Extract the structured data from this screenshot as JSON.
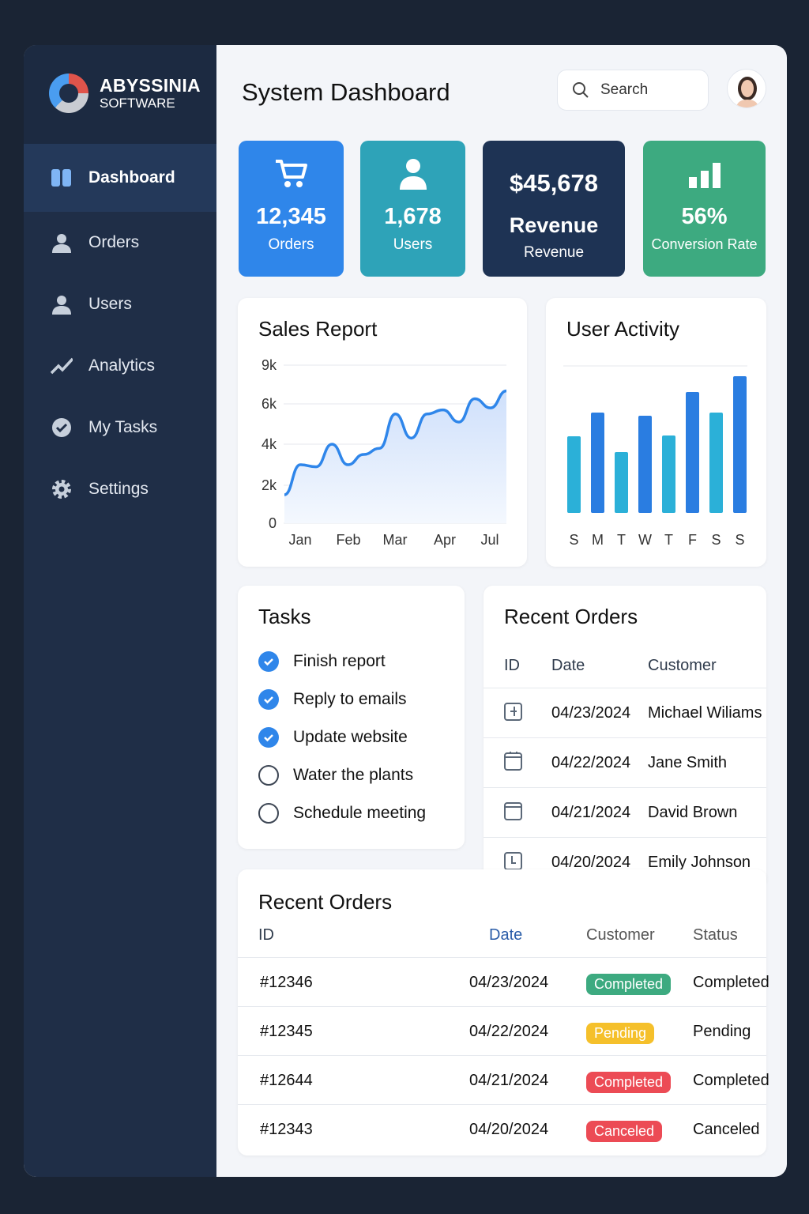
{
  "brand": {
    "name": "ABYSSINIA",
    "sub": "SOFTWARE"
  },
  "sidebar": {
    "items": [
      {
        "label": "Dashboard",
        "icon": "dashboard-icon",
        "active": true
      },
      {
        "label": "Orders",
        "icon": "user-icon"
      },
      {
        "label": "Users",
        "icon": "user-icon"
      },
      {
        "label": "Analytics",
        "icon": "trend-icon"
      },
      {
        "label": "My Tasks",
        "icon": "check-circle-icon"
      },
      {
        "label": "Settings",
        "icon": "gear-icon"
      }
    ]
  },
  "header": {
    "title": "System Dashboard",
    "search_placeholder": "Search"
  },
  "stats": [
    {
      "value": "12,345",
      "label": "Orders",
      "icon": "cart-icon",
      "color": "#2f86ea"
    },
    {
      "value": "1,678",
      "label": "Users",
      "icon": "user-icon",
      "color": "#2ea3b8"
    },
    {
      "value": "$45,678",
      "label2": "Revenue",
      "label": "Revenue",
      "color": "#1e3354"
    },
    {
      "value": "56%",
      "label": "Conversion Rate",
      "icon": "bar-chart-icon",
      "color": "#3daa80"
    }
  ],
  "chart_data": [
    {
      "type": "area",
      "title": "Sales Report",
      "y_ticks": [
        "0",
        "2k",
        "4k",
        "6k",
        "9k"
      ],
      "y_tick_values": [
        0,
        2000,
        4000,
        6000,
        9000
      ],
      "x_ticks": [
        "Jan",
        "Feb",
        "Mar",
        "Apr",
        "Jul"
      ],
      "values": [
        1500,
        3000,
        2900,
        4000,
        3000,
        3500,
        3800,
        5500,
        4300,
        5500,
        5700,
        5100,
        6400,
        5800,
        7000
      ],
      "color": "#2f86ea",
      "grid": true
    },
    {
      "type": "bar",
      "title": "User Activity",
      "categories": [
        "S",
        "M",
        "T",
        "W",
        "T",
        "F",
        "S",
        "S"
      ],
      "values": [
        97,
        127,
        77,
        123,
        98,
        153,
        127,
        173
      ],
      "colors": [
        "#2bb0d8",
        "#2a7de1"
      ],
      "grid": true
    }
  ],
  "tasks": {
    "title": "Tasks",
    "items": [
      {
        "label": "Finish report",
        "done": true
      },
      {
        "label": "Reply to emails",
        "done": true
      },
      {
        "label": "Update website",
        "done": true
      },
      {
        "label": "Water the plants",
        "done": false
      },
      {
        "label": "Schedule meeting",
        "done": false
      }
    ]
  },
  "recent_orders_small": {
    "title": "Recent Orders",
    "headers": [
      "ID",
      "Date",
      "Customer"
    ],
    "rows": [
      {
        "icon": "plus-square-icon",
        "date": "04/23/2024",
        "customer": "Michael Wiliams"
      },
      {
        "icon": "calendar-icon",
        "date": "04/22/2024",
        "customer": "Jane Smith"
      },
      {
        "icon": "window-icon",
        "date": "04/21/2024",
        "customer": "David Brown"
      },
      {
        "icon": "clock-square-icon",
        "date": "04/20/2024",
        "customer": "Emily Johnson"
      }
    ]
  },
  "recent_orders": {
    "title": "Recent Orders",
    "headers": [
      "ID",
      "Date",
      "Customer",
      "Status"
    ],
    "rows": [
      {
        "id": "#12346",
        "date": "04/23/2024",
        "badge": "Completed",
        "badge_color": "#3daa80",
        "status": "Completed"
      },
      {
        "id": "#12345",
        "date": "04/22/2024",
        "badge": "Pending",
        "badge_color": "#f5c02b",
        "status": "Pending"
      },
      {
        "id": "#12644",
        "date": "04/21/2024",
        "badge": "Completed",
        "badge_color": "#ec4b55",
        "status": "Completed"
      },
      {
        "id": "#12343",
        "date": "04/20/2024",
        "badge": "Canceled",
        "badge_color": "#ec4b55",
        "status": "Canceled"
      }
    ]
  }
}
